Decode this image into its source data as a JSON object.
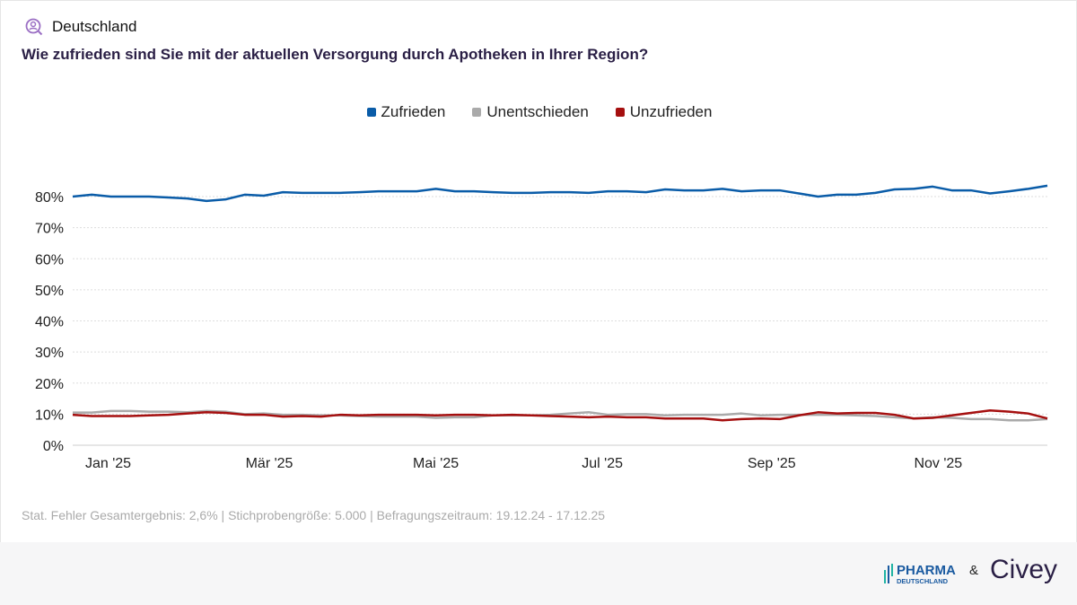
{
  "header": {
    "region": "Deutschland",
    "icon": "user-search-icon",
    "question": "Wie zufrieden sind Sie mit der aktuellen Versorgung durch Apotheken in Ihrer Region?"
  },
  "note": "Stat. Fehler Gesamtergebnis: 2,6% | Stichprobengröße: 5.000 | Befragungszeitraum: 19.12.24 - 17.12.25",
  "footer": {
    "logo1": "PHARMA DEUTSCHLAND",
    "amp": "&",
    "logo2": "Civey"
  },
  "chart_data": {
    "type": "line",
    "ylim": [
      0,
      80
    ],
    "grid": true,
    "legend_placement": "top",
    "yticks": [
      "0%",
      "10%",
      "20%",
      "30%",
      "40%",
      "50%",
      "60%",
      "70%",
      "80%"
    ],
    "xticks": [
      {
        "label": "Jan '25",
        "date": "2025-01-01"
      },
      {
        "label": "Mär '25",
        "date": "2025-03-01"
      },
      {
        "label": "Mai '25",
        "date": "2025-05-01"
      },
      {
        "label": "Jul '25",
        "date": "2025-07-01"
      },
      {
        "label": "Sep '25",
        "date": "2025-09-01"
      },
      {
        "label": "Nov '25",
        "date": "2025-11-01"
      }
    ],
    "x": [
      "2024-12-19",
      "2024-12-26",
      "2025-01-02",
      "2025-01-09",
      "2025-01-16",
      "2025-01-23",
      "2025-01-30",
      "2025-02-06",
      "2025-02-13",
      "2025-02-20",
      "2025-02-27",
      "2025-03-06",
      "2025-03-13",
      "2025-03-20",
      "2025-03-27",
      "2025-04-03",
      "2025-04-10",
      "2025-04-17",
      "2025-04-24",
      "2025-05-01",
      "2025-05-08",
      "2025-05-15",
      "2025-05-22",
      "2025-05-29",
      "2025-06-05",
      "2025-06-12",
      "2025-06-19",
      "2025-06-26",
      "2025-07-03",
      "2025-07-10",
      "2025-07-17",
      "2025-07-24",
      "2025-07-31",
      "2025-08-07",
      "2025-08-14",
      "2025-08-21",
      "2025-08-28",
      "2025-09-04",
      "2025-09-11",
      "2025-09-18",
      "2025-09-25",
      "2025-10-02",
      "2025-10-09",
      "2025-10-16",
      "2025-10-23",
      "2025-10-30",
      "2025-11-06",
      "2025-11-13",
      "2025-11-20",
      "2025-11-27",
      "2025-12-04",
      "2025-12-11"
    ],
    "series": [
      {
        "name": "Zufrieden",
        "color": "#0a5ca8",
        "values": [
          80,
          80.6,
          80,
          80,
          80,
          79.7,
          79.4,
          78.6,
          79.1,
          80.6,
          80.3,
          81.4,
          81.2,
          81.2,
          81.2,
          81.4,
          81.7,
          81.7,
          81.7,
          82.5,
          81.7,
          81.7,
          81.4,
          81.2,
          81.2,
          81.4,
          81.4,
          81.2,
          81.7,
          81.7,
          81.4,
          82.3,
          82,
          82,
          82.5,
          81.7,
          82,
          82,
          81,
          80,
          80.6,
          80.6,
          81.2,
          82.3,
          82.5,
          83.2,
          82,
          82,
          81,
          81.7,
          82.5,
          83.5
        ]
      },
      {
        "name": "Unentschieden",
        "color": "#aaaaaa",
        "values": [
          10.5,
          10.5,
          11,
          11,
          10.8,
          10.8,
          10.6,
          11,
          10.8,
          10,
          10.2,
          9.8,
          9.8,
          9.6,
          9.6,
          9.4,
          9.2,
          9.2,
          9.2,
          8.8,
          9,
          9,
          9.6,
          9.6,
          9.6,
          9.8,
          10.2,
          10.6,
          9.8,
          10,
          10,
          9.6,
          9.8,
          9.8,
          9.8,
          10.2,
          9.6,
          9.8,
          9.8,
          9.8,
          9.8,
          9.6,
          9.4,
          9,
          8.6,
          9,
          8.8,
          8.4,
          8.4,
          8,
          8,
          8.4
        ]
      },
      {
        "name": "Unzufrieden",
        "color": "#a50f0f",
        "values": [
          9.8,
          9.4,
          9.4,
          9.4,
          9.6,
          9.8,
          10.2,
          10.6,
          10.4,
          9.8,
          9.8,
          9.2,
          9.4,
          9.2,
          9.8,
          9.6,
          9.8,
          9.8,
          9.8,
          9.6,
          9.8,
          9.8,
          9.6,
          9.8,
          9.6,
          9.4,
          9.2,
          9,
          9.2,
          9,
          9,
          8.6,
          8.6,
          8.6,
          8,
          8.4,
          8.6,
          8.4,
          9.6,
          10.6,
          10.2,
          10.4,
          10.4,
          9.8,
          8.6,
          8.8,
          9.6,
          10.4,
          11.2,
          10.8,
          10.2,
          8.6
        ]
      }
    ]
  }
}
